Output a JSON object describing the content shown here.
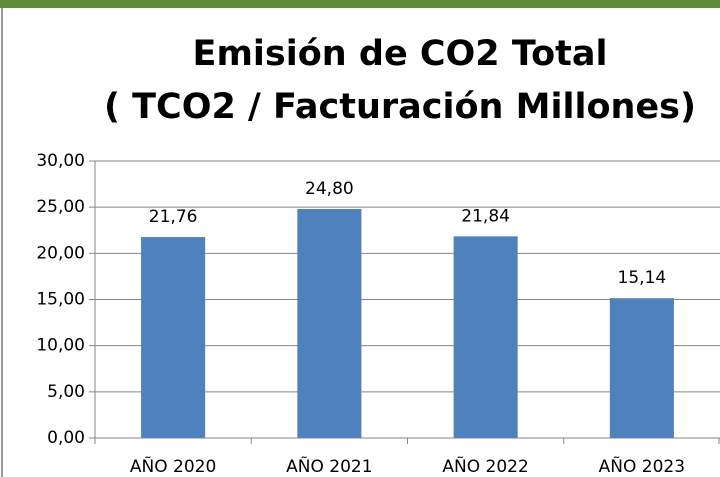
{
  "chart_data": {
    "type": "bar",
    "title": [
      "Emisión de CO2 Total",
      "( TCO2 / Facturación Millones)"
    ],
    "categories": [
      "AÑO 2020",
      "AÑO 2021",
      "AÑO 2022",
      "AÑO 2023"
    ],
    "values": [
      21.76,
      24.8,
      21.84,
      15.14
    ],
    "value_labels": [
      "21,76",
      "24,80",
      "21,84",
      "15,14"
    ],
    "color": "#4f81bd",
    "ylim": [
      0,
      30
    ],
    "yticks": [
      {
        "value": 0,
        "label": "0,00"
      },
      {
        "value": 5,
        "label": "5,00"
      },
      {
        "value": 10,
        "label": "10,00"
      },
      {
        "value": 15,
        "label": "15,00"
      },
      {
        "value": 20,
        "label": "20,00"
      },
      {
        "value": 25,
        "label": "25,00"
      },
      {
        "value": 30,
        "label": "30,00"
      }
    ],
    "grid": true
  }
}
